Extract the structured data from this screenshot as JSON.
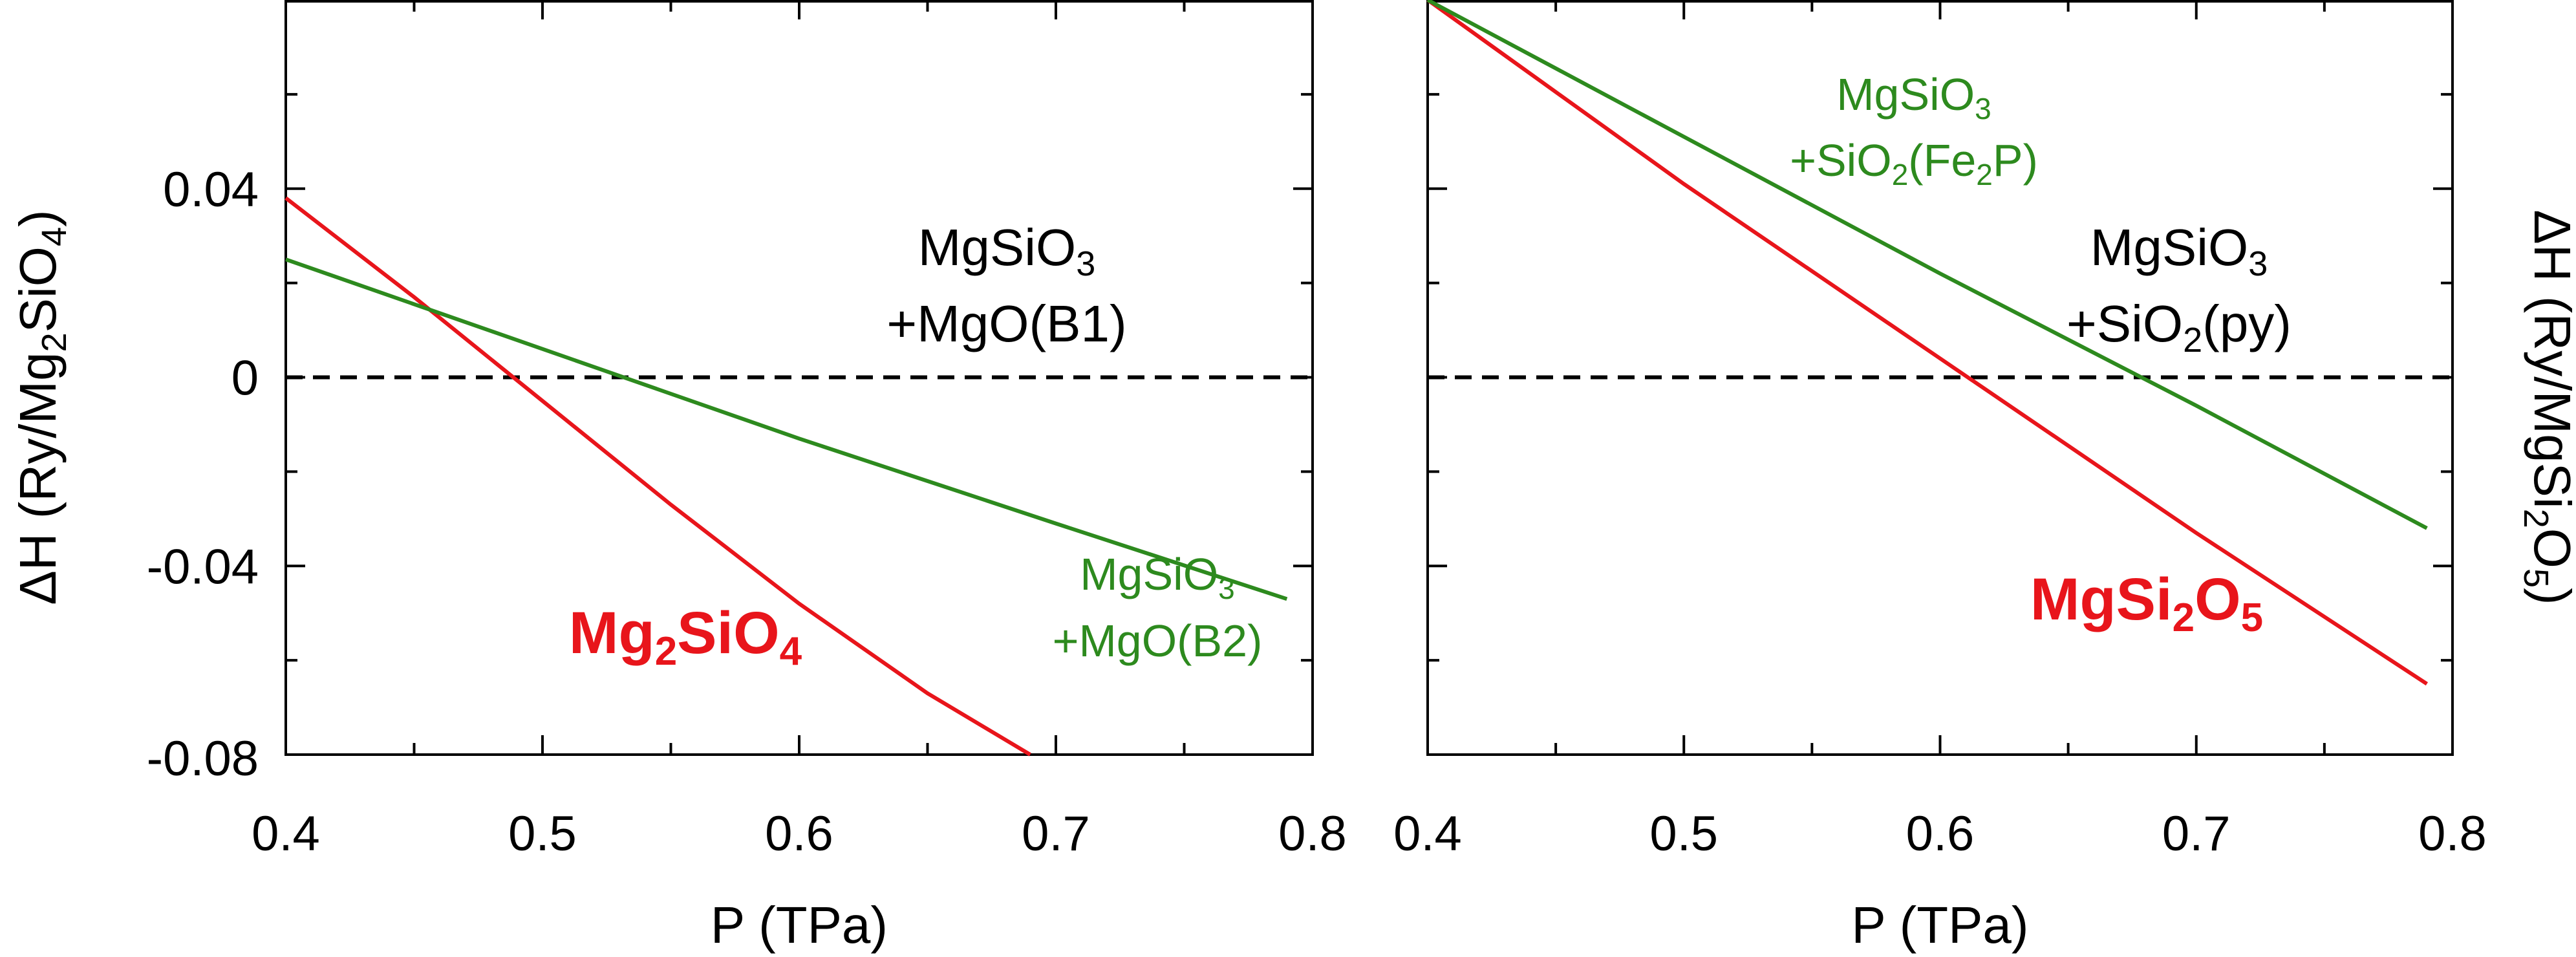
{
  "colors": {
    "red": "#e8151b",
    "green": "#2d8a1e",
    "black": "#000000"
  },
  "chart_data": [
    {
      "type": "line",
      "panel": "left",
      "xlabel": "P (TPa)",
      "ylabel": {
        "text": "ΔH (Ry/Mg",
        "sub1": "2",
        "mid": "SiO",
        "sub2": "4",
        "tail": ")"
      },
      "xlim": [
        0.4,
        0.8
      ],
      "ylim": [
        -0.08,
        0.08
      ],
      "x_ticks": [
        "0.4",
        "0.5",
        "0.6",
        "0.7",
        "0.8"
      ],
      "y_ticks": [
        "0.04",
        "0",
        "-0.04",
        "-0.08"
      ],
      "reference": {
        "name": "MgSiO3+MgO(B1)",
        "y": 0,
        "style": "dashed",
        "label_line1": {
          "text": "MgSiO",
          "sub": "3"
        },
        "label_line2": "+MgO(B1)"
      },
      "series": [
        {
          "name": "Mg2SiO4",
          "color": "red",
          "x": [
            0.4,
            0.45,
            0.5,
            0.55,
            0.6,
            0.65,
            0.69
          ],
          "y": [
            0.038,
            0.017,
            -0.005,
            -0.027,
            -0.048,
            -0.067,
            -0.08
          ],
          "label": {
            "base": "Mg",
            "sub1": "2",
            "mid": "SiO",
            "sub2": "4"
          }
        },
        {
          "name": "MgSiO3+MgO(B2)",
          "color": "green",
          "x": [
            0.4,
            0.5,
            0.6,
            0.7,
            0.79
          ],
          "y": [
            0.025,
            0.006,
            -0.013,
            -0.031,
            -0.047
          ],
          "label_line1": {
            "text": "MgSiO",
            "sub": "3"
          },
          "label_line2": "+MgO(B2)"
        }
      ]
    },
    {
      "type": "line",
      "panel": "right",
      "xlabel": "P (TPa)",
      "ylabel": {
        "text": "ΔH (Ry/MgSi",
        "sub1": "2",
        "mid": "O",
        "sub2": "5",
        "tail": ")"
      },
      "xlim": [
        0.4,
        0.8
      ],
      "ylim": [
        -0.08,
        0.08
      ],
      "x_ticks": [
        "0.4",
        "0.5",
        "0.6",
        "0.7",
        "0.8"
      ],
      "y_ticks": [],
      "reference": {
        "name": "MgSiO3+SiO2(py)",
        "y": 0,
        "style": "dashed",
        "label_line1": {
          "text": "MgSiO",
          "sub": "3"
        },
        "label_line2": {
          "pre": "+SiO",
          "sub": "2",
          "post": "(py)"
        }
      },
      "series": [
        {
          "name": "MgSi2O5",
          "color": "red",
          "x": [
            0.4,
            0.5,
            0.6,
            0.7,
            0.79
          ],
          "y": [
            0.08,
            0.041,
            0.004,
            -0.033,
            -0.065
          ],
          "label": {
            "base": "MgSi",
            "sub1": "2",
            "mid": "O",
            "sub2": "5"
          }
        },
        {
          "name": "MgSiO3+SiO2(Fe2P)",
          "color": "green",
          "x": [
            0.4,
            0.5,
            0.6,
            0.7,
            0.79
          ],
          "y": [
            0.08,
            0.051,
            0.022,
            -0.006,
            -0.032
          ],
          "label_line1": {
            "text": "MgSiO",
            "sub": "3"
          },
          "label_line2": {
            "pre": "+SiO",
            "sub": "2",
            "mid": "(Fe",
            "sub2": "2",
            "post": "P)"
          }
        }
      ]
    }
  ]
}
